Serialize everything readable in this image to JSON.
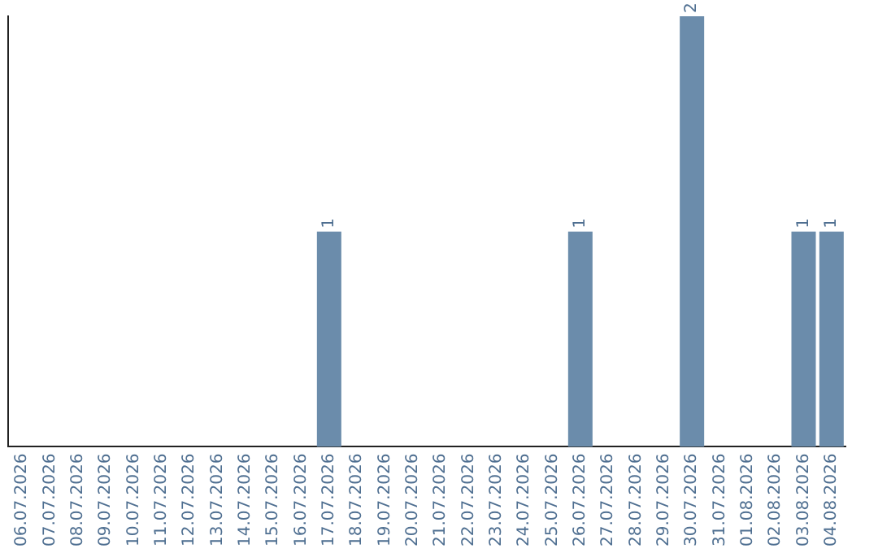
{
  "chart_data": {
    "type": "bar",
    "categories": [
      "06.07.2026",
      "07.07.2026",
      "08.07.2026",
      "09.07.2026",
      "10.07.2026",
      "11.07.2026",
      "12.07.2026",
      "13.07.2026",
      "14.07.2026",
      "15.07.2026",
      "16.07.2026",
      "17.07.2026",
      "18.07.2026",
      "19.07.2026",
      "20.07.2026",
      "21.07.2026",
      "22.07.2026",
      "23.07.2026",
      "24.07.2026",
      "25.07.2026",
      "26.07.2026",
      "27.07.2026",
      "28.07.2026",
      "29.07.2026",
      "30.07.2026",
      "31.07.2026",
      "01.08.2026",
      "02.08.2026",
      "03.08.2026",
      "04.08.2026"
    ],
    "values": [
      0,
      0,
      0,
      0,
      0,
      0,
      0,
      0,
      0,
      0,
      0,
      1,
      0,
      0,
      0,
      0,
      0,
      0,
      0,
      0,
      1,
      0,
      0,
      0,
      2,
      0,
      0,
      0,
      1,
      1
    ],
    "value_labels": [
      null,
      null,
      null,
      null,
      null,
      null,
      null,
      null,
      null,
      null,
      null,
      "1",
      null,
      null,
      null,
      null,
      null,
      null,
      null,
      null,
      "1",
      null,
      null,
      null,
      "2",
      null,
      null,
      null,
      "1",
      "1"
    ],
    "color": "#6b8cab",
    "tick_labels": "x",
    "grid": false,
    "legend": false
  }
}
